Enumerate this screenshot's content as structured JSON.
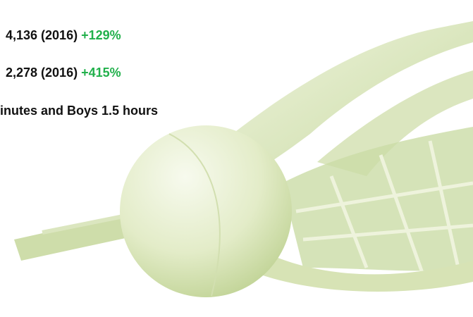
{
  "lines": [
    {
      "text": "4,136 (2016)",
      "change": "+129%"
    },
    {
      "text": "2,278 (2016)",
      "change": "+415%"
    },
    {
      "text": "inutes and Boys 1.5 hours"
    }
  ]
}
